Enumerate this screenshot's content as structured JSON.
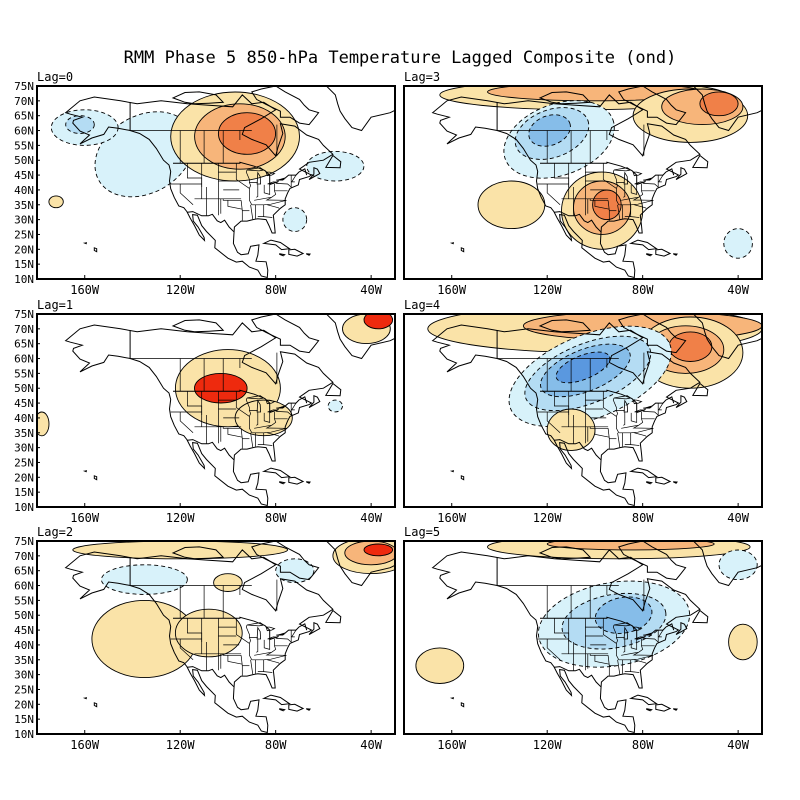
{
  "title": "RMM Phase 5 850-hPa Temperature Lagged Composite (ond)",
  "lat_labels": [
    "75N",
    "70N",
    "65N",
    "60N",
    "55N",
    "50N",
    "45N",
    "40N",
    "35N",
    "30N",
    "25N",
    "20N",
    "15N",
    "10N"
  ],
  "lon_labels": [
    "160W",
    "120W",
    "80W",
    "40W"
  ],
  "colors": {
    "warm1": "#fae3a8",
    "warm2": "#f7b57a",
    "warm3": "#f08048",
    "warm4": "#ee2a0e",
    "cool1": "#d8f2fa",
    "cool2": "#b4dcf3",
    "cool3": "#86bde9",
    "cool4": "#5a98df",
    "land": "#000000"
  },
  "panels": [
    {
      "id": "lag0",
      "label": "Lag=0",
      "features": [
        {
          "kind": "cool",
          "level": 1,
          "cx": -135,
          "cy": 52,
          "rx": 22,
          "ry": 13,
          "rot": -30
        },
        {
          "kind": "cool",
          "level": 1,
          "cx": -160,
          "cy": 61,
          "rx": 14,
          "ry": 6,
          "rot": 0
        },
        {
          "kind": "cool",
          "level": 2,
          "cx": -162,
          "cy": 62,
          "rx": 6,
          "ry": 3,
          "rot": 0
        },
        {
          "kind": "cool",
          "level": 1,
          "cx": -55,
          "cy": 48,
          "rx": 12,
          "ry": 5,
          "rot": 0
        },
        {
          "kind": "cool",
          "level": 1,
          "cx": -72,
          "cy": 30,
          "rx": 5,
          "ry": 4,
          "rot": 0
        },
        {
          "kind": "warm",
          "level": 1,
          "cx": -97,
          "cy": 58,
          "rx": 27,
          "ry": 15,
          "rot": 0
        },
        {
          "kind": "warm",
          "level": 2,
          "cx": -95,
          "cy": 58,
          "rx": 19,
          "ry": 11,
          "rot": 0
        },
        {
          "kind": "warm",
          "level": 3,
          "cx": -92,
          "cy": 59,
          "rx": 12,
          "ry": 7,
          "rot": 0
        },
        {
          "kind": "warm",
          "level": 1,
          "cx": -172,
          "cy": 36,
          "rx": 3,
          "ry": 2,
          "rot": 0
        }
      ]
    },
    {
      "id": "lag3",
      "label": "Lag=3",
      "features": [
        {
          "kind": "warm",
          "level": 1,
          "cx": -105,
          "cy": 72,
          "rx": 60,
          "ry": 5,
          "rot": 0
        },
        {
          "kind": "warm",
          "level": 2,
          "cx": -100,
          "cy": 73,
          "rx": 45,
          "ry": 3,
          "rot": 0
        },
        {
          "kind": "warm",
          "level": 1,
          "cx": -60,
          "cy": 65,
          "rx": 24,
          "ry": 9,
          "rot": 0
        },
        {
          "kind": "warm",
          "level": 2,
          "cx": -55,
          "cy": 68,
          "rx": 17,
          "ry": 6,
          "rot": 0
        },
        {
          "kind": "warm",
          "level": 3,
          "cx": -48,
          "cy": 69,
          "rx": 8,
          "ry": 4,
          "rot": 0
        },
        {
          "kind": "cool",
          "level": 1,
          "cx": -115,
          "cy": 57,
          "rx": 24,
          "ry": 12,
          "rot": -20
        },
        {
          "kind": "cool",
          "level": 2,
          "cx": -118,
          "cy": 59,
          "rx": 16,
          "ry": 8,
          "rot": -20
        },
        {
          "kind": "cool",
          "level": 3,
          "cx": -119,
          "cy": 60,
          "rx": 9,
          "ry": 5,
          "rot": -20
        },
        {
          "kind": "warm",
          "level": 1,
          "cx": -97,
          "cy": 33,
          "rx": 17,
          "ry": 13,
          "rot": 0
        },
        {
          "kind": "warm",
          "level": 2,
          "cx": -97,
          "cy": 34,
          "rx": 12,
          "ry": 9,
          "rot": 0
        },
        {
          "kind": "warm",
          "level": 3,
          "cx": -95,
          "cy": 35,
          "rx": 6,
          "ry": 5,
          "rot": 0
        },
        {
          "kind": "warm",
          "level": 1,
          "cx": -135,
          "cy": 35,
          "rx": 14,
          "ry": 8,
          "rot": 0
        },
        {
          "kind": "cool",
          "level": 1,
          "cx": -40,
          "cy": 22,
          "rx": 6,
          "ry": 5,
          "rot": 0
        }
      ]
    },
    {
      "id": "lag1",
      "label": "Lag=1",
      "features": [
        {
          "kind": "warm",
          "level": 1,
          "cx": -100,
          "cy": 50,
          "rx": 22,
          "ry": 13,
          "rot": 0
        },
        {
          "kind": "warm",
          "level": 1,
          "cx": -85,
          "cy": 40,
          "rx": 12,
          "ry": 6,
          "rot": 0
        },
        {
          "kind": "warm",
          "level": 4,
          "cx": -103,
          "cy": 50,
          "rx": 11,
          "ry": 5,
          "rot": 0
        },
        {
          "kind": "warm",
          "level": 1,
          "cx": -42,
          "cy": 70,
          "rx": 10,
          "ry": 5,
          "rot": 0
        },
        {
          "kind": "warm",
          "level": 4,
          "cx": -37,
          "cy": 73,
          "rx": 6,
          "ry": 3,
          "rot": 0
        },
        {
          "kind": "cool",
          "level": 1,
          "cx": -55,
          "cy": 44,
          "rx": 3,
          "ry": 2,
          "rot": 0
        },
        {
          "kind": "warm",
          "level": 1,
          "cx": -178,
          "cy": 38,
          "rx": 3,
          "ry": 4,
          "rot": 0
        }
      ]
    },
    {
      "id": "lag4",
      "label": "Lag=4",
      "features": [
        {
          "kind": "warm",
          "level": 1,
          "cx": -100,
          "cy": 70,
          "rx": 70,
          "ry": 8,
          "rot": 0
        },
        {
          "kind": "warm",
          "level": 2,
          "cx": -80,
          "cy": 71,
          "rx": 50,
          "ry": 5,
          "rot": 0
        },
        {
          "kind": "warm",
          "level": 1,
          "cx": -60,
          "cy": 62,
          "rx": 22,
          "ry": 12,
          "rot": 0
        },
        {
          "kind": "warm",
          "level": 2,
          "cx": -62,
          "cy": 63,
          "rx": 16,
          "ry": 8,
          "rot": 0
        },
        {
          "kind": "warm",
          "level": 3,
          "cx": -60,
          "cy": 64,
          "rx": 9,
          "ry": 5,
          "rot": 0
        },
        {
          "kind": "cool",
          "level": 1,
          "cx": -102,
          "cy": 54,
          "rx": 36,
          "ry": 14,
          "rot": -22
        },
        {
          "kind": "cool",
          "level": 2,
          "cx": -103,
          "cy": 55,
          "rx": 28,
          "ry": 10,
          "rot": -22
        },
        {
          "kind": "cool",
          "level": 3,
          "cx": -104,
          "cy": 56,
          "rx": 20,
          "ry": 7,
          "rot": -22
        },
        {
          "kind": "cool",
          "level": 4,
          "cx": -105,
          "cy": 57,
          "rx": 12,
          "ry": 4,
          "rot": -22
        },
        {
          "kind": "warm",
          "level": 1,
          "cx": -110,
          "cy": 36,
          "rx": 10,
          "ry": 7,
          "rot": 0
        }
      ]
    },
    {
      "id": "lag2",
      "label": "Lag=2",
      "features": [
        {
          "kind": "warm",
          "level": 1,
          "cx": -40,
          "cy": 70,
          "rx": 16,
          "ry": 6,
          "rot": 0
        },
        {
          "kind": "warm",
          "level": 2,
          "cx": -40,
          "cy": 71,
          "rx": 11,
          "ry": 4,
          "rot": 0
        },
        {
          "kind": "warm",
          "level": 4,
          "cx": -37,
          "cy": 72,
          "rx": 6,
          "ry": 2,
          "rot": 0
        },
        {
          "kind": "warm",
          "level": 1,
          "cx": -120,
          "cy": 72,
          "rx": 45,
          "ry": 3,
          "rot": 0
        },
        {
          "kind": "warm",
          "level": 1,
          "cx": -135,
          "cy": 42,
          "rx": 22,
          "ry": 13,
          "rot": 0
        },
        {
          "kind": "warm",
          "level": 1,
          "cx": -108,
          "cy": 44,
          "rx": 14,
          "ry": 8,
          "rot": 0
        },
        {
          "kind": "warm",
          "level": 1,
          "cx": -100,
          "cy": 61,
          "rx": 6,
          "ry": 3,
          "rot": 0
        },
        {
          "kind": "cool",
          "level": 1,
          "cx": -135,
          "cy": 62,
          "rx": 18,
          "ry": 5,
          "rot": 0
        },
        {
          "kind": "cool",
          "level": 1,
          "cx": -72,
          "cy": 65,
          "rx": 8,
          "ry": 4,
          "rot": 0
        }
      ]
    },
    {
      "id": "lag5",
      "label": "Lag=5",
      "features": [
        {
          "kind": "warm",
          "level": 1,
          "cx": -90,
          "cy": 73,
          "rx": 55,
          "ry": 4,
          "rot": 0
        },
        {
          "kind": "warm",
          "level": 2,
          "cx": -85,
          "cy": 74,
          "rx": 35,
          "ry": 2,
          "rot": 0
        },
        {
          "kind": "cool",
          "level": 1,
          "cx": -92,
          "cy": 47,
          "rx": 32,
          "ry": 14,
          "rot": -10
        },
        {
          "kind": "cool",
          "level": 2,
          "cx": -92,
          "cy": 48,
          "rx": 22,
          "ry": 9,
          "rot": -10
        },
        {
          "kind": "cool",
          "level": 3,
          "cx": -88,
          "cy": 50,
          "rx": 12,
          "ry": 6,
          "rot": -10
        },
        {
          "kind": "warm",
          "level": 1,
          "cx": -165,
          "cy": 33,
          "rx": 10,
          "ry": 6,
          "rot": 0
        },
        {
          "kind": "warm",
          "level": 1,
          "cx": -38,
          "cy": 41,
          "rx": 6,
          "ry": 6,
          "rot": 0
        },
        {
          "kind": "cool",
          "level": 1,
          "cx": -40,
          "cy": 67,
          "rx": 8,
          "ry": 5,
          "rot": 0
        }
      ]
    }
  ]
}
